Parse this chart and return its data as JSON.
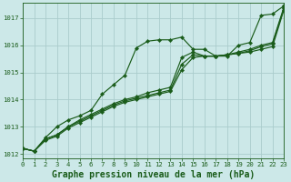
{
  "bg_color": "#cce8e8",
  "grid_color": "#aacccc",
  "line_color": "#1a5c1a",
  "text_color": "#1a5c1a",
  "xlabel": "Graphe pression niveau de la mer (hPa)",
  "xlim": [
    0,
    23
  ],
  "ylim": [
    1011.85,
    1017.55
  ],
  "yticks": [
    1012,
    1013,
    1014,
    1015,
    1016,
    1017
  ],
  "xticks": [
    0,
    1,
    2,
    3,
    4,
    5,
    6,
    7,
    8,
    9,
    10,
    11,
    12,
    13,
    14,
    15,
    16,
    17,
    18,
    19,
    20,
    21,
    22,
    23
  ],
  "lines": [
    {
      "x": [
        0,
        1,
        2,
        3,
        4,
        5,
        6,
        7,
        8,
        9,
        10,
        11,
        12,
        13,
        14,
        15,
        16,
        17,
        18,
        19,
        20,
        21,
        22,
        23
      ],
      "y": [
        1012.2,
        1012.1,
        1012.6,
        1013.0,
        1013.25,
        1013.4,
        1013.6,
        1014.2,
        1014.55,
        1014.9,
        1015.9,
        1016.15,
        1016.2,
        1016.2,
        1016.3,
        1015.85,
        1015.85,
        1015.6,
        1015.6,
        1016.0,
        1016.1,
        1017.1,
        1017.15,
        1017.45
      ]
    },
    {
      "x": [
        0,
        1,
        2,
        3,
        4,
        5,
        6,
        7,
        8,
        9,
        10,
        11,
        12,
        13,
        14,
        15,
        16,
        17,
        18,
        19,
        20,
        21,
        22,
        23
      ],
      "y": [
        1012.2,
        1012.1,
        1012.55,
        1012.7,
        1013.0,
        1013.25,
        1013.45,
        1013.65,
        1013.85,
        1014.0,
        1014.1,
        1014.25,
        1014.35,
        1014.45,
        1015.55,
        1015.75,
        1015.6,
        1015.6,
        1015.65,
        1015.75,
        1015.85,
        1016.0,
        1016.1,
        1017.4
      ]
    },
    {
      "x": [
        0,
        1,
        2,
        3,
        4,
        5,
        6,
        7,
        8,
        9,
        10,
        11,
        12,
        13,
        14,
        15,
        16,
        17,
        18,
        19,
        20,
        21,
        22,
        23
      ],
      "y": [
        1012.2,
        1012.1,
        1012.55,
        1012.7,
        1013.0,
        1013.2,
        1013.4,
        1013.6,
        1013.8,
        1013.95,
        1014.05,
        1014.15,
        1014.25,
        1014.35,
        1015.3,
        1015.65,
        1015.6,
        1015.6,
        1015.65,
        1015.7,
        1015.8,
        1015.95,
        1016.05,
        1017.35
      ]
    },
    {
      "x": [
        0,
        1,
        2,
        3,
        4,
        5,
        6,
        7,
        8,
        9,
        10,
        11,
        12,
        13,
        14,
        15,
        16,
        17,
        18,
        19,
        20,
        21,
        22,
        23
      ],
      "y": [
        1012.2,
        1012.1,
        1012.5,
        1012.65,
        1012.95,
        1013.15,
        1013.35,
        1013.55,
        1013.75,
        1013.9,
        1014.0,
        1014.1,
        1014.2,
        1014.3,
        1015.1,
        1015.55,
        1015.6,
        1015.6,
        1015.65,
        1015.7,
        1015.75,
        1015.85,
        1015.95,
        1017.3
      ]
    }
  ],
  "markersize": 2.2,
  "linewidth": 0.85,
  "title_fontsize": 7.0,
  "tick_fontsize": 5.2
}
